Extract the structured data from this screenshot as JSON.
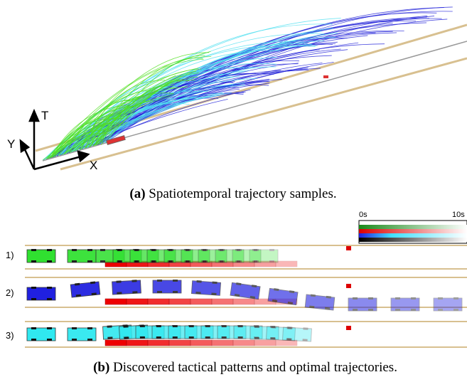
{
  "figure_a": {
    "axis_labels": {
      "t": "T",
      "y": "Y",
      "x": "X"
    }
  },
  "caption_a": {
    "label": "(a)",
    "text": "Spatiotemporal trajectory samples."
  },
  "figure_b": {
    "colorbar": {
      "start": "0s",
      "end": "10s"
    },
    "rows": [
      "1)",
      "2)",
      "3)"
    ]
  },
  "caption_b": {
    "label": "(b)",
    "text": "Discovered tactical patterns and optimal trajectories."
  }
}
